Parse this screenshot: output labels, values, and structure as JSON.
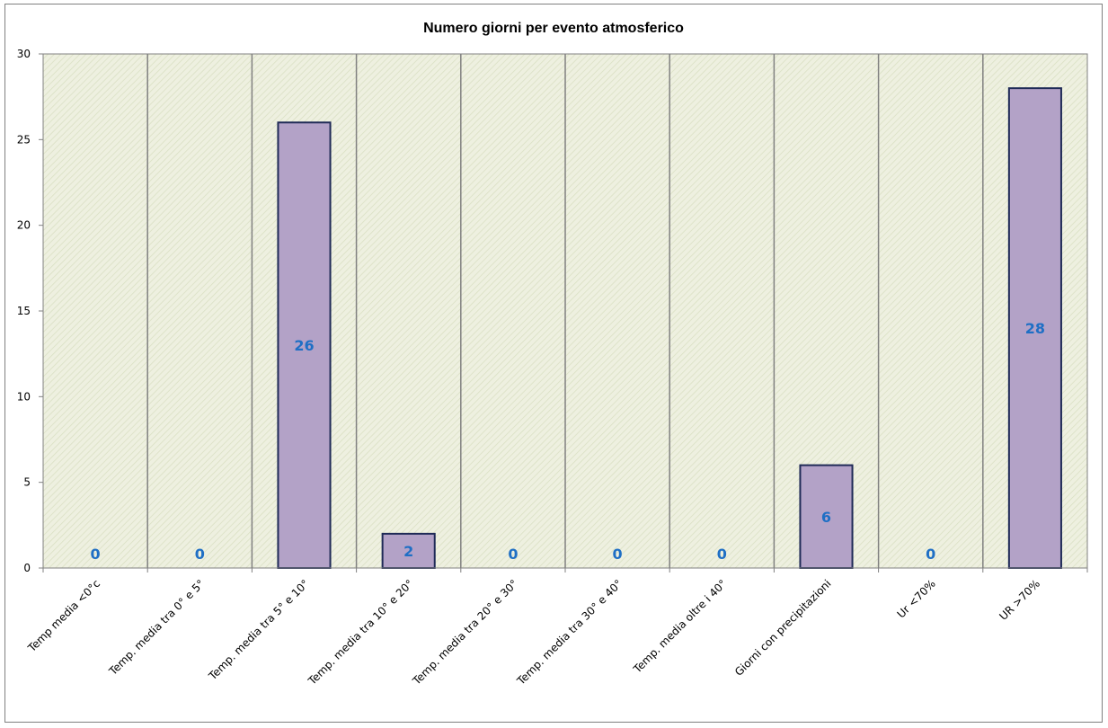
{
  "chart_data": {
    "type": "bar",
    "title": "Numero giorni  per evento atmosferico",
    "xlabel": "",
    "ylabel": "",
    "categories": [
      "Temp media <0°c",
      "Temp. media tra 0° e 5°",
      "Temp. media tra 5° e 10°",
      "Temp. media tra 10° e 20°",
      "Temp. media tra 20° e 30°",
      "Temp. media tra 30° e 40°",
      "Temp. media oltre i 40°",
      "Giorni con precipitazioni",
      "Ur  <70%",
      "UR >70%"
    ],
    "values": [
      0,
      0,
      26,
      2,
      0,
      0,
      0,
      6,
      0,
      28
    ],
    "data_labels": [
      "0",
      "0",
      "26",
      "2",
      "0",
      "0",
      "0",
      "6",
      "0",
      "28"
    ],
    "yticks": [
      "0",
      "5",
      "10",
      "15",
      "20",
      "25",
      "30"
    ],
    "ylim": [
      0,
      30
    ],
    "grid": "vertical",
    "legend": "none",
    "colors": {
      "bar_fill": "#b3a2c7",
      "bar_stroke": "#1f2a57",
      "plot_bg": "#eef0e0",
      "hatch": "#d9dfc2",
      "grid": "#808080",
      "label": "#1f6fc5"
    }
  }
}
